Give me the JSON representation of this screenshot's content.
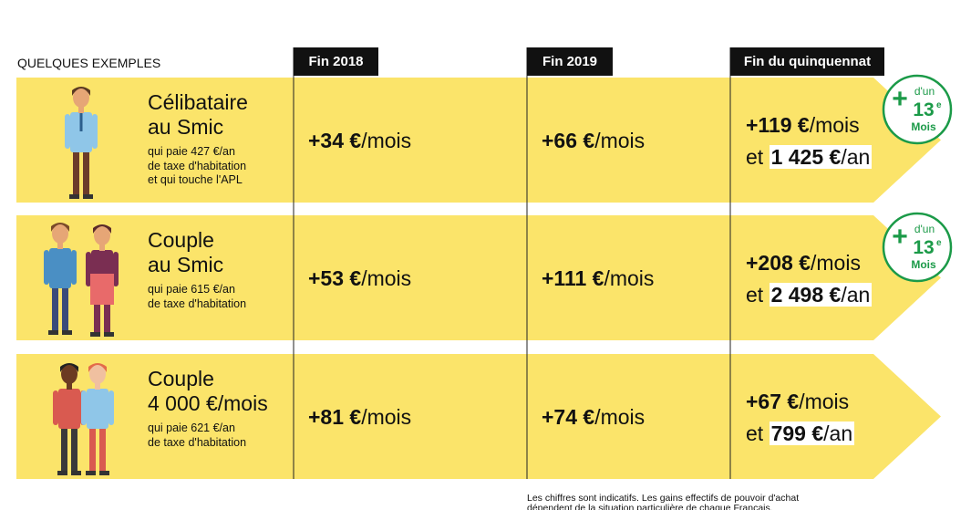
{
  "header": {
    "label": "QUELQUES EXEMPLES",
    "columns": [
      "Fin 2018",
      "Fin 2019",
      "Fin du quinquennat"
    ]
  },
  "rows": [
    {
      "title": [
        "Célibataire",
        "au Smic"
      ],
      "details": [
        "qui paie 427 €/an",
        "de taxe d'habitation",
        "et qui touche l'APL"
      ],
      "fin_2018": {
        "amount": "+34 €",
        "unit": "/mois"
      },
      "fin_2019": {
        "amount": "+66 €",
        "unit": "/mois"
      },
      "quinquennat": {
        "monthly": "+119 €",
        "monthly_unit": "/mois",
        "connector": "et",
        "yearly": "1 425 €",
        "yearly_unit": "/an"
      },
      "badge": {
        "plus": "+",
        "top": "d'un",
        "number": "13",
        "suffix": "e",
        "bottom": "Mois"
      }
    },
    {
      "title": [
        "Couple",
        "au Smic"
      ],
      "details": [
        "qui paie 615 €/an",
        "de taxe d'habitation"
      ],
      "fin_2018": {
        "amount": "+53 €",
        "unit": "/mois"
      },
      "fin_2019": {
        "amount": "+111 €",
        "unit": "/mois"
      },
      "quinquennat": {
        "monthly": "+208 €",
        "monthly_unit": "/mois",
        "connector": "et",
        "yearly": "2 498 €",
        "yearly_unit": "/an"
      },
      "badge": {
        "plus": "+",
        "top": "d'un",
        "number": "13",
        "suffix": "e",
        "bottom": "Mois"
      }
    },
    {
      "title": [
        "Couple",
        "4 000 €/mois"
      ],
      "details": [
        "qui paie 621 €/an",
        "de taxe d'habitation"
      ],
      "fin_2018": {
        "amount": "+81 €",
        "unit": "/mois"
      },
      "fin_2019": {
        "amount": "+74 €",
        "unit": "/mois"
      },
      "quinquennat": {
        "monthly": "+67 €",
        "monthly_unit": "/mois",
        "connector": "et",
        "yearly": "799 €",
        "yearly_unit": "/an"
      }
    }
  ],
  "footnote": [
    "Les chiffres sont indicatifs. Les gains effectifs de pouvoir d'achat",
    "dépendent de la situation particulière de chaque Français."
  ]
}
